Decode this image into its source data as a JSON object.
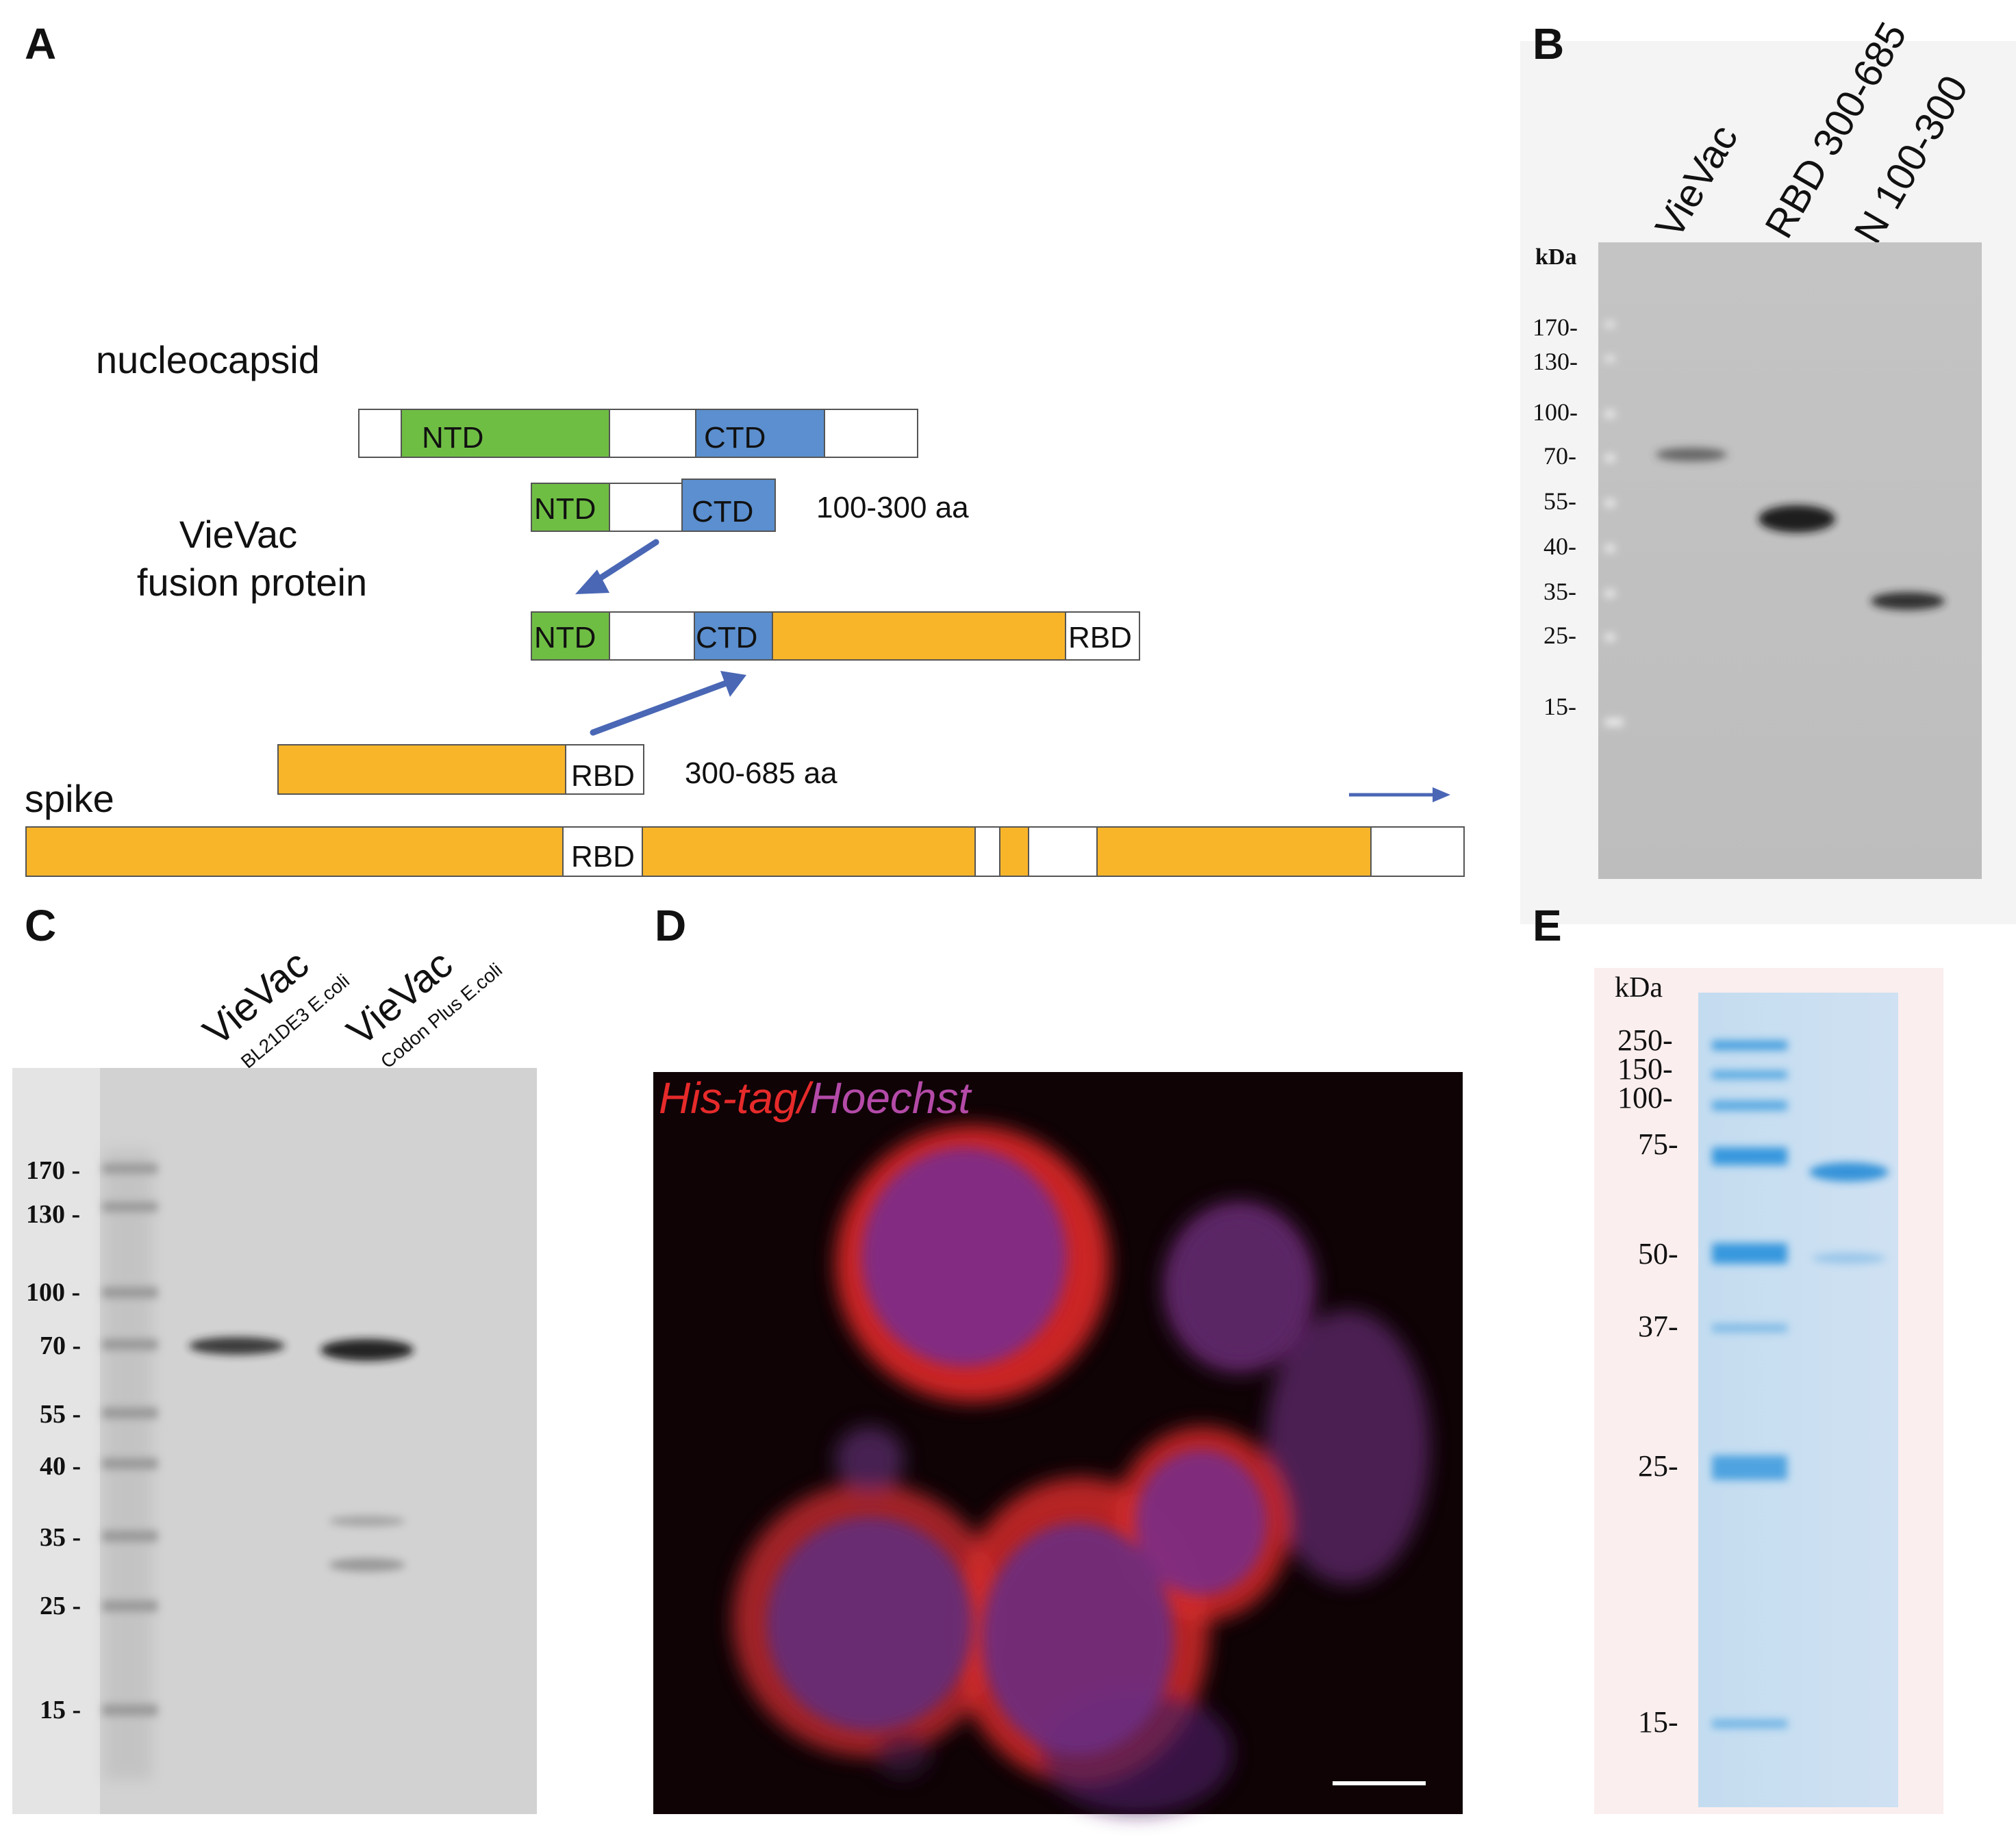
{
  "panels": {
    "a": {
      "letter": "A",
      "nucleocapsid_label": "nucleocapsid",
      "fusion_label_line1": "VieVac",
      "fusion_label_line2": "fusion protein",
      "spike_label": "spike",
      "ntd": "NTD",
      "ctd": "CTD",
      "rbd": "RBD",
      "n_range": "100-300 aa",
      "s_range": "300-685 aa",
      "colors": {
        "ntd": "#6fbe44",
        "ctd": "#5b8fcf",
        "spike": "#f9b52a",
        "arrow": "#4a67b5"
      }
    },
    "b": {
      "letter": "B",
      "kda": "kDa",
      "lanes": [
        "VieVac",
        "RBD 300-685",
        "N 100-300"
      ],
      "markers": [
        "170-",
        "130-",
        "100-",
        "70-",
        "55-",
        "40-",
        "35-",
        "25-",
        "15-"
      ]
    },
    "c": {
      "letter": "C",
      "lane1_main": "VieVac",
      "lane1_sub": "BL21DE3 E.coli",
      "lane2_main": "VieVac",
      "lane2_sub": "Codon Plus E.coli",
      "markers": [
        "170 -",
        "130 -",
        "100 -",
        "70 -",
        "55 -",
        "40 -",
        "35 -",
        "25 -",
        "15 -"
      ]
    },
    "d": {
      "letter": "D",
      "stain_red": "His-tag/",
      "stain_purple": "Hoechst"
    },
    "e": {
      "letter": "E",
      "kda": "kDa",
      "markers": [
        "250-",
        "150-",
        "100-",
        "75-",
        "50-",
        "37-",
        "25-",
        "15-"
      ]
    }
  }
}
